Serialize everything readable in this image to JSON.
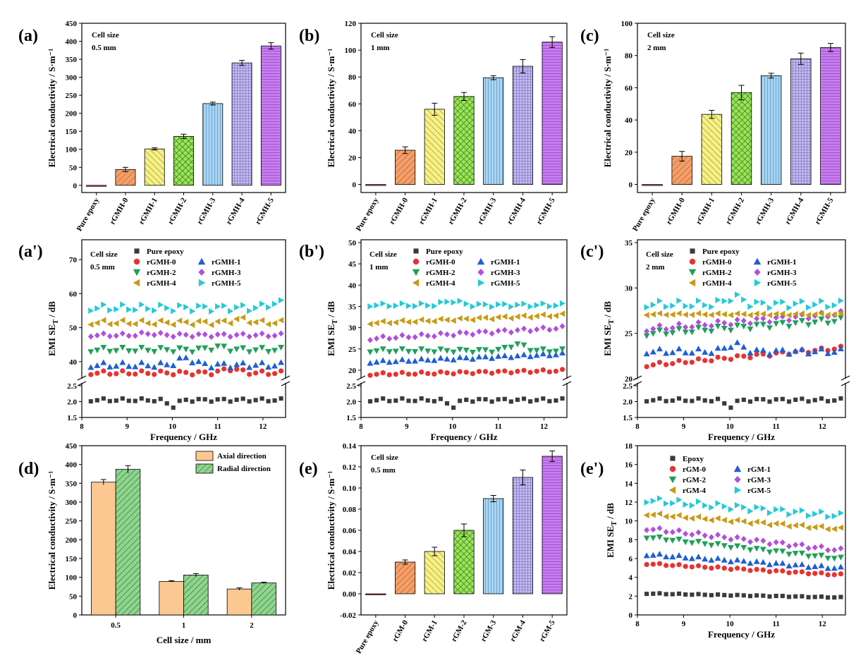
{
  "colors": {
    "pure": "#f05b5b",
    "g0": "#f2a06c",
    "g1": "#f5f08a",
    "g2": "#9be35a",
    "g3": "#a8d4f2",
    "g4": "#c2b8f0",
    "g5": "#c77df0",
    "axial": "#fcc891",
    "radial": "#8fd48f",
    "black": "#3b3b3b",
    "red": "#e8332e",
    "blue": "#1f5fd6",
    "green": "#1fa05a",
    "purple": "#b04fe0",
    "gold": "#c99a14",
    "cyan": "#26c9d6"
  },
  "chart_data": [
    {
      "id": "a",
      "label": "(a)",
      "type": "bar",
      "title": "",
      "ylabel": "Electrical conductivity / S·m⁻¹",
      "annotation": [
        "Cell size",
        "0.5 mm"
      ],
      "categories": [
        "Pure epoxy",
        "rGMH-0",
        "rGMH-1",
        "rGMH-2",
        "rGMH-3",
        "rGMH-4",
        "rGMH-5"
      ],
      "values": [
        0,
        44,
        101,
        136,
        227,
        340,
        387
      ],
      "errors": [
        0,
        6,
        3,
        6,
        4,
        7,
        9
      ],
      "ylim": [
        -20,
        450
      ],
      "yticks": [
        0,
        50,
        100,
        150,
        200,
        250,
        300,
        350,
        400,
        450
      ]
    },
    {
      "id": "b",
      "label": "(b)",
      "type": "bar",
      "ylabel": "Electrical conductivity / S·m⁻¹",
      "annotation": [
        "Cell size",
        "1 mm"
      ],
      "categories": [
        "Pure epoxy",
        "rGMH-0",
        "rGMH-1",
        "rGMH-2",
        "rGMH-3",
        "rGMH-4",
        "rGMH-5"
      ],
      "values": [
        0,
        25.5,
        56,
        65.5,
        79.5,
        88,
        106
      ],
      "errors": [
        0,
        2.5,
        4.5,
        3,
        1.5,
        5,
        4
      ],
      "ylim": [
        -6,
        120
      ],
      "yticks": [
        0,
        20,
        40,
        60,
        80,
        100,
        120
      ]
    },
    {
      "id": "c",
      "label": "(c)",
      "type": "bar",
      "ylabel": "Electrical conductivity / S·m⁻¹",
      "annotation": [
        "Cell size",
        "2 mm"
      ],
      "categories": [
        "Pure epoxy",
        "rGMH-0",
        "rGMH-1",
        "rGMH-2",
        "rGMH-3",
        "rGMH-4",
        "rGMH-5"
      ],
      "values": [
        0,
        17.5,
        43.5,
        57,
        67.5,
        78,
        85
      ],
      "errors": [
        0,
        3,
        2.5,
        4.5,
        1.5,
        3.5,
        2.5
      ],
      "ylim": [
        -5,
        100
      ],
      "yticks": [
        0,
        20,
        40,
        60,
        80,
        100
      ]
    },
    {
      "id": "a2",
      "label": "(a')",
      "type": "scatter",
      "xlabel": "Frequency / GHz",
      "ylabel": "EMI  SE",
      "ylabel_sub": "T",
      "ylabel_tail": " / dB",
      "annotation": [
        "Cell size",
        "0.5 mm"
      ],
      "legend": [
        "Pure epoxy",
        "rGMH-0",
        "rGMH-1",
        "rGMH-2",
        "rGMH-3",
        "rGMH-4",
        "rGMH-5"
      ],
      "upper_ylim": [
        35,
        75
      ],
      "upper_yticks": [
        40,
        50,
        60,
        70
      ],
      "lower_ylim": [
        1.5,
        2.5
      ],
      "lower_yticks": [
        "1.5",
        "2.0",
        "2.5"
      ],
      "xlim": [
        8,
        12.5
      ],
      "xticks": [
        8,
        9,
        10,
        11,
        12
      ],
      "series": [
        {
          "name": "Pure epoxy",
          "marker": "square",
          "color": "black",
          "base": 2.05,
          "amp": 0.05,
          "dip": 10.0,
          "dipv": -0.2
        },
        {
          "name": "rGMH-0",
          "marker": "circle",
          "color": "red",
          "base": 36.7,
          "amp": 0.6,
          "bump": 11.3,
          "bumpv": 1.2
        },
        {
          "name": "rGMH-1",
          "marker": "tri-up",
          "color": "blue",
          "base": 39.0,
          "amp": 0.8,
          "bump": 10.3,
          "bumpv": 2.0
        },
        {
          "name": "rGMH-2",
          "marker": "tri-down",
          "color": "green",
          "base": 43.5,
          "amp": 0.7,
          "bump": 11.0,
          "bumpv": 0.8
        },
        {
          "name": "rGMH-3",
          "marker": "diamond",
          "color": "purple",
          "base": 47.8,
          "amp": 0.5,
          "bump": 9.5,
          "bumpv": 0.5
        },
        {
          "name": "rGMH-4",
          "marker": "tri-left",
          "color": "gold",
          "base": 51.5,
          "amp": 0.7,
          "bump": 11.5,
          "bumpv": 1.0
        },
        {
          "name": "rGMH-5",
          "marker": "tri-right",
          "color": "cyan",
          "base": 55.8,
          "amp": 1.0,
          "bump": 12.3,
          "bumpv": 1.5
        }
      ]
    },
    {
      "id": "b2",
      "label": "(b')",
      "type": "scatter",
      "xlabel": "Frequency / GHz",
      "ylabel": "EMI  SE",
      "ylabel_sub": "T",
      "ylabel_tail": " / dB",
      "annotation": [
        "Cell size",
        "1 mm"
      ],
      "legend": [
        "Pure epoxy",
        "rGMH-0",
        "rGMH-1",
        "rGMH-2",
        "rGMH-3",
        "rGMH-4",
        "rGMH-5"
      ],
      "upper_ylim": [
        18,
        50
      ],
      "upper_yticks": [
        20,
        25,
        30,
        35,
        40,
        45,
        50
      ],
      "lower_ylim": [
        1.5,
        2.5
      ],
      "lower_yticks": [
        "1.5",
        "2.0",
        "2.5"
      ],
      "xlim": [
        8,
        12.5
      ],
      "xticks": [
        8,
        9,
        10,
        11,
        12
      ],
      "series": [
        {
          "name": "Pure epoxy",
          "marker": "square",
          "color": "black",
          "base": 2.05,
          "amp": 0.05,
          "dip": 10.0,
          "dipv": -0.2
        },
        {
          "name": "rGMH-0",
          "marker": "circle",
          "color": "red",
          "base": 19.0,
          "amp": 0.3,
          "slope": 0.2
        },
        {
          "name": "rGMH-1",
          "marker": "tri-up",
          "color": "blue",
          "base": 21.8,
          "amp": 0.3,
          "slope": 0.45
        },
        {
          "name": "rGMH-2",
          "marker": "tri-down",
          "color": "green",
          "base": 24.6,
          "amp": 0.4,
          "bump": 11.4,
          "bumpv": 1.5
        },
        {
          "name": "rGMH-3",
          "marker": "diamond",
          "color": "purple",
          "base": 27.3,
          "amp": 0.4,
          "slope": 0.6
        },
        {
          "name": "rGMH-4",
          "marker": "tri-left",
          "color": "gold",
          "base": 31.0,
          "amp": 0.3,
          "slope": 0.45
        },
        {
          "name": "rGMH-5",
          "marker": "tri-right",
          "color": "cyan",
          "base": 35.3,
          "amp": 0.4,
          "bump": 10.0,
          "bumpv": 1.0
        }
      ]
    },
    {
      "id": "c2",
      "label": "(c')",
      "type": "scatter",
      "xlabel": "Frequency / GHz",
      "ylabel": "EMI  SE",
      "ylabel_sub": "T",
      "ylabel_tail": " / dB",
      "annotation": [
        "Cell size",
        "2 mm"
      ],
      "legend": [
        "Pure epoxy",
        "rGMH-0",
        "rGMH-1",
        "rGMH-2",
        "rGMH-3",
        "rGMH-4",
        "rGMH-5"
      ],
      "upper_ylim": [
        20,
        35
      ],
      "upper_yticks": [
        20,
        25,
        30,
        35
      ],
      "lower_ylim": [
        1.5,
        2.5
      ],
      "lower_yticks": [
        "1.5",
        "2.0",
        "2.5"
      ],
      "xlim": [
        8,
        12.5
      ],
      "xticks": [
        8,
        9,
        10,
        11,
        12
      ],
      "series": [
        {
          "name": "Pure epoxy",
          "marker": "square",
          "color": "black",
          "base": 2.05,
          "amp": 0.05,
          "dip": 10.0,
          "dipv": -0.2
        },
        {
          "name": "rGMH-0",
          "marker": "circle",
          "color": "red",
          "base": 21.4,
          "amp": 0.2,
          "slope": 0.45
        },
        {
          "name": "rGMH-1",
          "marker": "tri-up",
          "color": "blue",
          "base": 23.0,
          "amp": 0.3,
          "bump": 10.1,
          "bumpv": 0.8
        },
        {
          "name": "rGMH-2",
          "marker": "tri-down",
          "color": "green",
          "base": 24.9,
          "amp": 0.3,
          "slope": 0.35
        },
        {
          "name": "rGMH-3",
          "marker": "diamond",
          "color": "purple",
          "base": 25.4,
          "amp": 0.3,
          "slope": 0.4
        },
        {
          "name": "rGMH-4",
          "marker": "tri-left",
          "color": "gold",
          "base": 27.1,
          "amp": 0.1,
          "slope": 0.0
        },
        {
          "name": "rGMH-5",
          "marker": "tri-right",
          "color": "cyan",
          "base": 28.2,
          "amp": 0.4,
          "bump": 10.1,
          "bumpv": 0.8
        }
      ]
    },
    {
      "id": "d",
      "label": "(d)",
      "type": "bar",
      "xlabel": "Cell size / mm",
      "ylabel": "Electrical conductivity / S·m⁻¹",
      "categories": [
        "0.5",
        "1",
        "2"
      ],
      "series": [
        {
          "name": "Axial direction",
          "values": [
            353,
            89,
            69
          ],
          "errors": [
            7,
            2,
            3
          ]
        },
        {
          "name": "Radial direction",
          "values": [
            387,
            106,
            85
          ],
          "errors": [
            10,
            4,
            2
          ]
        }
      ],
      "ylim": [
        0,
        450
      ],
      "yticks": [
        0,
        50,
        100,
        150,
        200,
        250,
        300,
        350,
        400,
        450
      ]
    },
    {
      "id": "e",
      "label": "(e)",
      "type": "bar",
      "ylabel": "Electrical conductivity / S·m⁻¹",
      "annotation": [
        "Cell size",
        "0.5 mm"
      ],
      "categories": [
        "Pure epoxy",
        "rGM-0",
        "rGM-1",
        "rGM-2",
        "rGM-3",
        "rGM-4",
        "rGM-5"
      ],
      "values": [
        0,
        0.03,
        0.04,
        0.06,
        0.09,
        0.11,
        0.13
      ],
      "errors": [
        0,
        0.002,
        0.004,
        0.006,
        0.003,
        0.007,
        0.005
      ],
      "ylim": [
        -0.02,
        0.14
      ],
      "yticks": [
        "-0.02",
        "0.00",
        "0.02",
        "0.04",
        "0.06",
        "0.08",
        "0.10",
        "0.12",
        "0.14"
      ]
    },
    {
      "id": "e2",
      "label": "(e')",
      "type": "scatter",
      "xlabel": "Frequency / GHz",
      "ylabel": "EMI  SE",
      "ylabel_sub": "T",
      "ylabel_tail": " / dB",
      "legend": [
        "Epoxy",
        "rGM-0",
        "rGM-1",
        "rGM-2",
        "rGM-3",
        "rGM-4",
        "rGM-5"
      ],
      "ylim": [
        0,
        18
      ],
      "yticks": [
        0,
        2,
        4,
        6,
        8,
        10,
        12,
        14,
        16,
        18
      ],
      "xlim": [
        8,
        12.5
      ],
      "xticks": [
        8,
        9,
        10,
        11,
        12
      ],
      "series": [
        {
          "name": "Epoxy",
          "marker": "square",
          "color": "black",
          "base": 2.3,
          "slope": -0.1,
          "amp": 0.05
        },
        {
          "name": "rGM-0",
          "marker": "circle",
          "color": "red",
          "base": 5.5,
          "slope": -0.28,
          "amp": 0.1
        },
        {
          "name": "rGM-1",
          "marker": "tri-up",
          "color": "blue",
          "base": 6.5,
          "slope": -0.35,
          "amp": 0.15
        },
        {
          "name": "rGM-2",
          "marker": "tri-down",
          "color": "green",
          "base": 8.4,
          "slope": -0.55,
          "amp": 0.15
        },
        {
          "name": "rGM-3",
          "marker": "diamond",
          "color": "purple",
          "base": 9.3,
          "slope": -0.55,
          "amp": 0.2
        },
        {
          "name": "rGM-4",
          "marker": "tri-left",
          "color": "gold",
          "base": 10.8,
          "slope": -0.38,
          "amp": 0.15
        },
        {
          "name": "rGM-5",
          "marker": "tri-right",
          "color": "cyan",
          "base": 12.3,
          "slope": -0.4,
          "amp": 0.3
        }
      ]
    }
  ]
}
